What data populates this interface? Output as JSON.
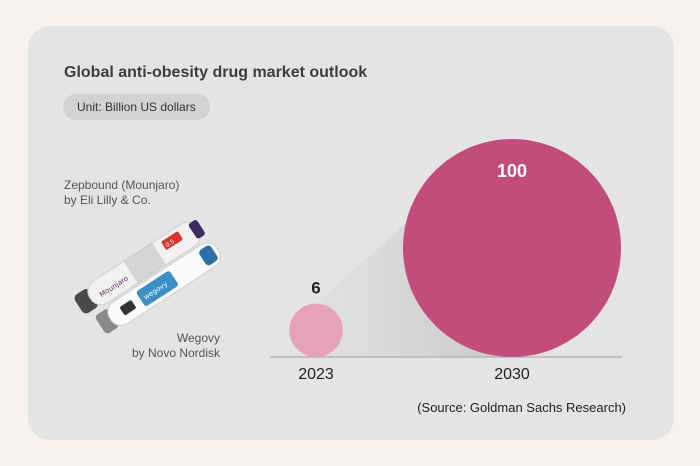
{
  "chart_data": {
    "type": "bubble",
    "title": "Global anti-obesity drug market outlook",
    "unit": "Unit: Billion US dollars",
    "categories": [
      "2023",
      "2030"
    ],
    "values": [
      6,
      100
    ],
    "value_labels": [
      "6",
      "100"
    ],
    "colors": [
      "#e6a3b8",
      "#c24d7a"
    ],
    "source": "(Source: Goldman Sachs Research)"
  },
  "annotations": {
    "zepbound": [
      "Zepbound (Mounjaro)",
      "by Eli Lilly & Co."
    ],
    "wegovy": [
      "Wegovy",
      "by Novo Nordisk"
    ]
  },
  "pen_labels": {
    "mounjaro": "Mounjaro",
    "wegovy": "wegovy",
    "dose": "0.5"
  }
}
